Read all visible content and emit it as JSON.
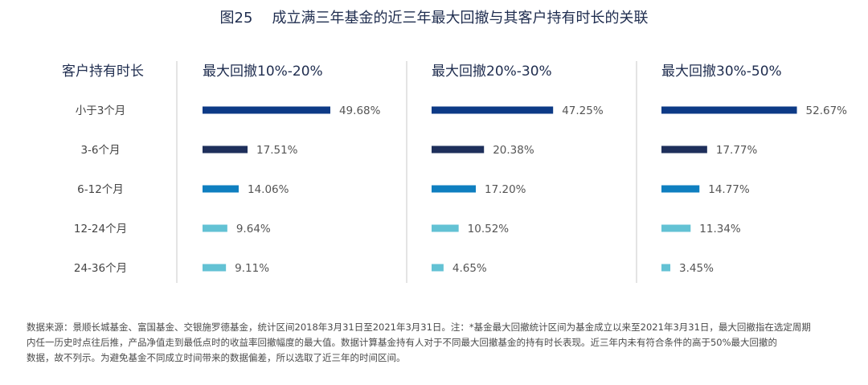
{
  "title": {
    "figure_no": "图25",
    "text": "成立满三年基金的近三年最大回撤与其客户持有时长的关联"
  },
  "chart_data": {
    "type": "bar",
    "orientation": "horizontal",
    "row_header": "客户持有时长",
    "categories": [
      "小于3个月",
      "3-6个月",
      "6-12个月",
      "12-24个月",
      "24-36个月"
    ],
    "category_colors": [
      "#0d3a86",
      "#1e2f5b",
      "#0f7fc0",
      "#63c2d4",
      "#63c2d4"
    ],
    "panels": [
      {
        "title": "最大回撤10%-20%",
        "values": [
          49.68,
          17.51,
          14.06,
          9.64,
          9.11
        ],
        "labels": [
          "49.68%",
          "17.51%",
          "14.06%",
          "9.64%",
          "9.11%"
        ]
      },
      {
        "title": "最大回撤20%-30%",
        "values": [
          47.25,
          20.38,
          17.2,
          10.52,
          4.65
        ],
        "labels": [
          "47.25%",
          "20.38%",
          "17.20%",
          "10.52%",
          "4.65%"
        ]
      },
      {
        "title": "最大回撤30%-50%",
        "values": [
          52.67,
          17.77,
          14.77,
          11.34,
          3.45
        ],
        "labels": [
          "52.67%",
          "17.77%",
          "14.77%",
          "11.34%",
          "3.45%"
        ]
      }
    ]
  },
  "footnote": {
    "lines": [
      "数据来源：景顺长城基金、富国基金、交银施罗德基金，统计区间2018年3月31日至2021年3月31日。注：*基金最大回撤统计区间为基金成立以来至2021年3月31日，最大回撤指在选定周期",
      "内任一历史时点往后推，产品净值走到最低点时的收益率回撤幅度的最大值。数据计算基金持有人对于不同最大回撤基金的持有时长表现。近三年内未有符合条件的高于50%最大回撤的",
      "数据，故不列示。为避免基金不同成立时间带来的数据偏差，所以选取了近三年的时间区间。"
    ]
  }
}
